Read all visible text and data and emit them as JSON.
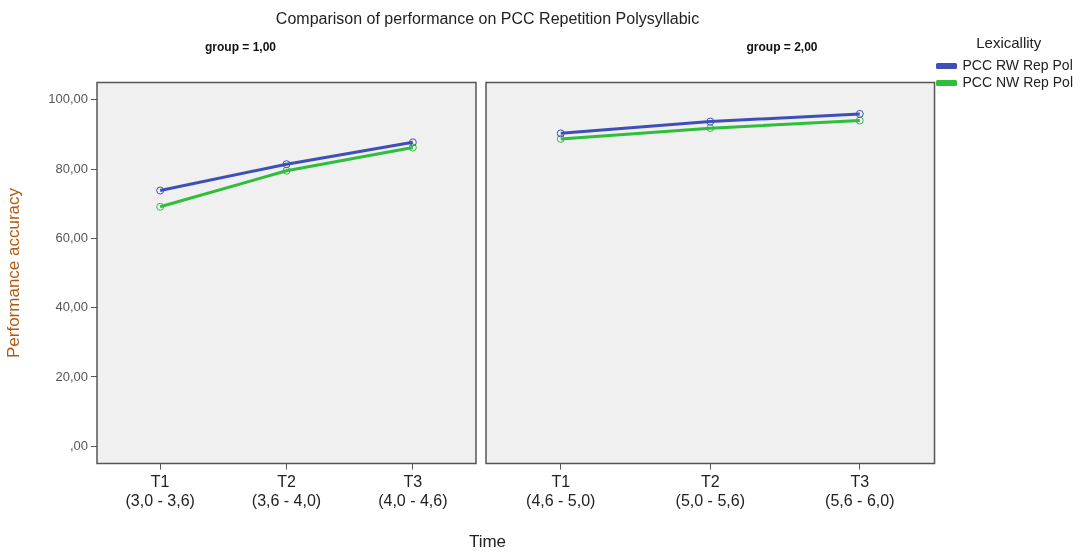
{
  "chart_data": [
    {
      "type": "line",
      "title": "Comparison of performance on PCC Repetition Polysyllabic",
      "subtitle": "group = 1,00",
      "xlabel": "Time",
      "ylabel": "Performance accuracy",
      "categories": [
        "T1\n(3,0 - 3,6)",
        "T2\n(3,6 - 4,0)",
        "T3\n(4,0 - 4,6)"
      ],
      "series": [
        {
          "color": "#3f4fb8",
          "values": [
            73.8,
            81.4,
            87.7
          ]
        },
        {
          "color": "#2dbf3a",
          "values": [
            69.1,
            79.5,
            86.2
          ]
        }
      ],
      "ylim": [
        -5,
        105
      ],
      "yticks": [
        {
          "value": 0,
          "label": ",00"
        },
        {
          "value": 20,
          "label": "20,00"
        },
        {
          "value": 40,
          "label": "40,00"
        },
        {
          "value": 60,
          "label": "60,00"
        },
        {
          "value": 80,
          "label": "80,00"
        },
        {
          "value": 100,
          "label": "100,00"
        }
      ],
      "grid": false,
      "marker": "circle",
      "legend": false
    },
    {
      "type": "line",
      "subtitle": "group = 2,00",
      "categories": [
        "T1\n(4,6 - 5,0)",
        "T2\n(5,0 - 5,6)",
        "T3\n(5,6 - 6,0)"
      ],
      "series": [
        {
          "name": "PCC RW Rep Pol",
          "color": "#3f4fb8",
          "values": [
            90.3,
            93.7,
            95.9
          ]
        },
        {
          "name": "PCC NW Rep Pol",
          "color": "#2dbf3a",
          "values": [
            88.7,
            91.8,
            94.0
          ]
        }
      ],
      "ylim": [
        -5,
        105
      ],
      "tick_labels": "x",
      "grid": false,
      "marker": "circle",
      "legend": "right",
      "legend_title": "Lexicallity"
    }
  ]
}
